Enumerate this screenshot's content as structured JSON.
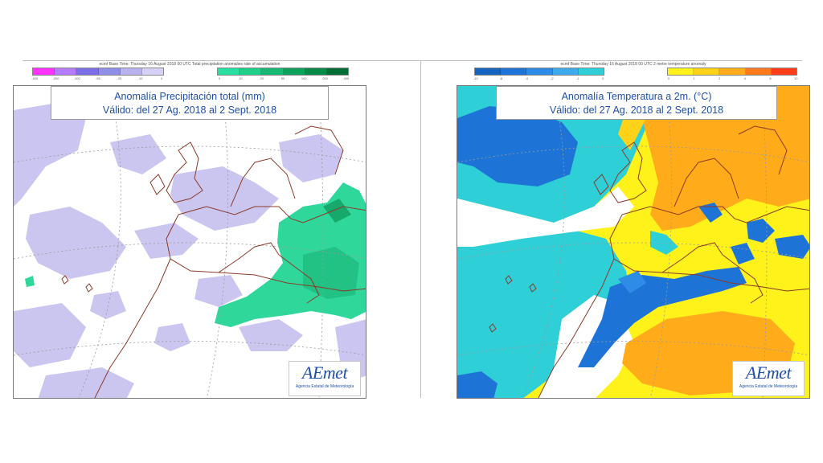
{
  "panels": [
    {
      "legend_caption": "ecmf   Base Time: Thursday 16 August 2018 00 UTC  Total precipitation anomalies rate of accumulation",
      "title_line1": "Anomalía Precipitación total (mm)",
      "title_line2": "Válido: del 27 Ag. 2018 al 2 Sept. 2018",
      "negative_colors": [
        "#ff33ff",
        "#b57bff",
        "#7c6ee6",
        "#8f8fe8",
        "#b9b3f0",
        "#d6d2f5"
      ],
      "negative_ticks": [
        "-400",
        "-200",
        "-100",
        "-50",
        "-20",
        "-10",
        "0"
      ],
      "positive_colors": [
        "#28e0a0",
        "#20cf8a",
        "#16b874",
        "#0da25c",
        "#078a48",
        "#036d35"
      ],
      "positive_ticks": [
        "0",
        "10",
        "20",
        "50",
        "100",
        "200",
        "400"
      ]
    },
    {
      "legend_caption": "ecmf   Base Time: Thursday 16 August 2018 00 UTC  2 metre temperature anomaly",
      "title_line1": "Anomalía Temperatura a 2m. (°C)",
      "title_line2": "Válido: del 27 Ag. 2018 al 2 Sept. 2018",
      "negative_colors": [
        "#1565c0",
        "#1e74d6",
        "#2e8be6",
        "#3fa9ee",
        "#2ecfd6"
      ],
      "negative_ticks": [
        "-10",
        "-8",
        "-4",
        "-2",
        "-1",
        "0"
      ],
      "positive_colors": [
        "#fff21a",
        "#ffd21a",
        "#ffab1a",
        "#ff7a1a",
        "#ff3d1a"
      ],
      "positive_ticks": [
        "0",
        "1",
        "2",
        "4",
        "8",
        "10"
      ]
    }
  ],
  "logo": {
    "text": "AEmet",
    "subtitle": "Agencia Estatal de Meteorología"
  },
  "colors": {
    "title_text": "#1f4fa8",
    "coast": "#8b3a2a"
  }
}
